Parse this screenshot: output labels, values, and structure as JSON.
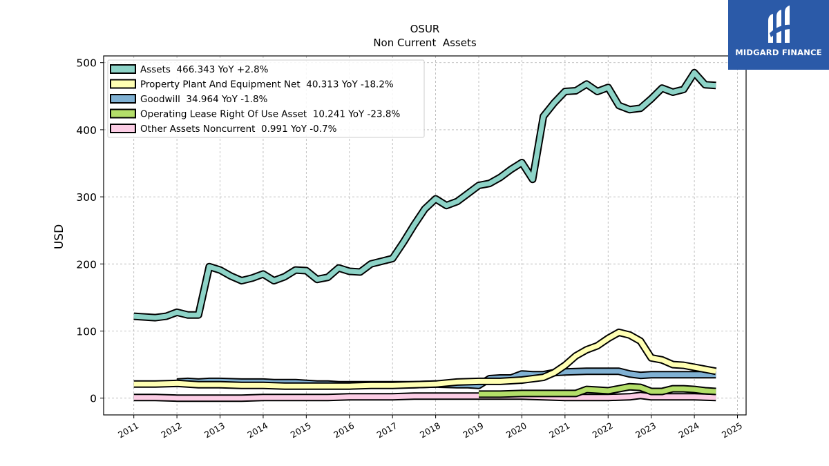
{
  "chart_data": {
    "type": "line",
    "title": "OSUR",
    "subtitle": "Non Current  Assets",
    "xlabel": "",
    "ylabel": "USD",
    "xlim": [
      2010.3,
      2025.2
    ],
    "ylim": [
      -25,
      510
    ],
    "x_ticks": [
      "2011",
      "2012",
      "2013",
      "2014",
      "2015",
      "2016",
      "2017",
      "2018",
      "2019",
      "2020",
      "2021",
      "2022",
      "2023",
      "2024",
      "2025"
    ],
    "y_ticks": [
      0,
      100,
      200,
      300,
      400,
      500
    ],
    "grid": true,
    "legend_position": "top-left",
    "series": [
      {
        "name": "Assets  466.343 YoY +2.8%",
        "color": "#8dd3c7",
        "x": [
          2011.0,
          2011.25,
          2011.5,
          2011.75,
          2012.0,
          2012.25,
          2012.5,
          2012.75,
          2013.0,
          2013.25,
          2013.5,
          2013.75,
          2014.0,
          2014.25,
          2014.5,
          2014.75,
          2015.0,
          2015.25,
          2015.5,
          2015.75,
          2016.0,
          2016.25,
          2016.5,
          2016.75,
          2017.0,
          2017.25,
          2017.5,
          2017.75,
          2018.0,
          2018.25,
          2018.5,
          2018.75,
          2019.0,
          2019.25,
          2019.5,
          2019.75,
          2020.0,
          2020.25,
          2020.5,
          2020.75,
          2021.0,
          2021.25,
          2021.5,
          2021.75,
          2022.0,
          2022.25,
          2022.5,
          2022.75,
          2023.0,
          2023.25,
          2023.5,
          2023.75,
          2024.0,
          2024.25,
          2024.5
        ],
        "values": [
          122,
          121,
          120,
          122,
          128,
          124,
          124,
          196,
          191,
          182,
          175,
          179,
          185,
          175,
          181,
          191,
          190,
          177,
          180,
          194,
          189,
          188,
          200,
          204,
          208,
          232,
          258,
          282,
          297,
          287,
          293,
          305,
          317,
          320,
          329,
          341,
          351,
          326,
          420,
          440,
          457,
          458,
          468,
          457,
          463,
          436,
          430,
          432,
          446,
          462,
          456,
          460,
          485,
          467,
          466
        ]
      },
      {
        "name": "Property Plant And Equipment Net  40.313 YoY -18.2%",
        "color": "#ffffb3",
        "x": [
          2011.0,
          2011.5,
          2012.0,
          2012.5,
          2013.0,
          2013.5,
          2014.0,
          2014.5,
          2015.0,
          2015.5,
          2016.0,
          2016.5,
          2017.0,
          2017.5,
          2018.0,
          2018.5,
          2019.0,
          2019.5,
          2020.0,
          2020.5,
          2020.75,
          2021.0,
          2021.25,
          2021.5,
          2021.75,
          2022.0,
          2022.25,
          2022.5,
          2022.75,
          2023.0,
          2023.25,
          2023.5,
          2023.75,
          2024.0,
          2024.25,
          2024.5
        ],
        "values": [
          21,
          21,
          22,
          20,
          20,
          19,
          19,
          18,
          18,
          18,
          18,
          19,
          19,
          20,
          21,
          24,
          25,
          25,
          27,
          31,
          38,
          49,
          63,
          72,
          78,
          89,
          98,
          94,
          85,
          60,
          57,
          50,
          49,
          46,
          43,
          40
        ]
      },
      {
        "name": "Goodwill  34.964 YoY -1.8%",
        "color": "#80b1d3",
        "x": [
          2012.0,
          2012.25,
          2012.5,
          2012.75,
          2013.0,
          2013.5,
          2014.0,
          2014.25,
          2014.5,
          2014.75,
          2015.0,
          2015.25,
          2015.5,
          2015.75,
          2016.0,
          2016.5,
          2017.0,
          2017.5,
          2018.0,
          2018.5,
          2018.75,
          2019.0,
          2019.25,
          2019.5,
          2019.75,
          2020.0,
          2020.25,
          2020.5,
          2020.75,
          2021.0,
          2021.5,
          2022.0,
          2022.25,
          2022.5,
          2022.75,
          2023.0,
          2023.5,
          2024.0,
          2024.5
        ],
        "values": [
          24,
          25,
          24,
          25,
          25,
          24,
          24,
          23,
          23,
          23,
          22,
          21,
          21,
          20,
          20,
          20,
          20,
          20,
          21,
          20,
          20,
          19,
          29,
          30,
          30,
          36,
          35,
          35,
          38,
          39,
          40,
          40,
          40,
          36,
          34,
          35,
          35,
          35,
          35
        ]
      },
      {
        "name": "Operating Lease Right Of Use Asset  10.241 YoY -23.8%",
        "color": "#b3de69",
        "x": [
          2019.0,
          2019.5,
          2020.0,
          2020.5,
          2021.0,
          2021.25,
          2021.5,
          2021.75,
          2022.0,
          2022.25,
          2022.5,
          2022.75,
          2023.0,
          2023.25,
          2023.5,
          2023.75,
          2024.0,
          2024.25,
          2024.5
        ],
        "values": [
          6,
          6,
          7,
          7,
          7,
          7,
          13,
          12,
          11,
          14,
          17,
          16,
          10,
          10,
          14,
          14,
          13,
          11,
          10
        ]
      },
      {
        "name": "Other Assets Noncurrent  0.991 YoY -0.7%",
        "color": "#fccde5",
        "x": [
          2011.0,
          2011.5,
          2012.0,
          2012.5,
          2013.0,
          2013.5,
          2014.0,
          2014.5,
          2015.0,
          2015.5,
          2016.0,
          2016.5,
          2017.0,
          2017.5,
          2018.0,
          2018.5,
          2019.0,
          2019.5,
          2020.0,
          2020.5,
          2021.0,
          2021.5,
          2022.0,
          2022.5,
          2022.75,
          2023.0,
          2023.5,
          2024.0,
          2024.5
        ],
        "values": [
          1,
          1,
          0,
          0,
          0,
          0,
          1,
          1,
          1,
          1,
          2,
          2,
          2,
          3,
          3,
          3,
          3,
          3,
          3,
          2,
          1,
          1,
          1,
          2,
          4,
          2,
          2,
          2,
          1
        ]
      }
    ]
  },
  "watermark": {
    "text": "MIDGARD FINANCE",
    "background": "#2b5aa8"
  }
}
